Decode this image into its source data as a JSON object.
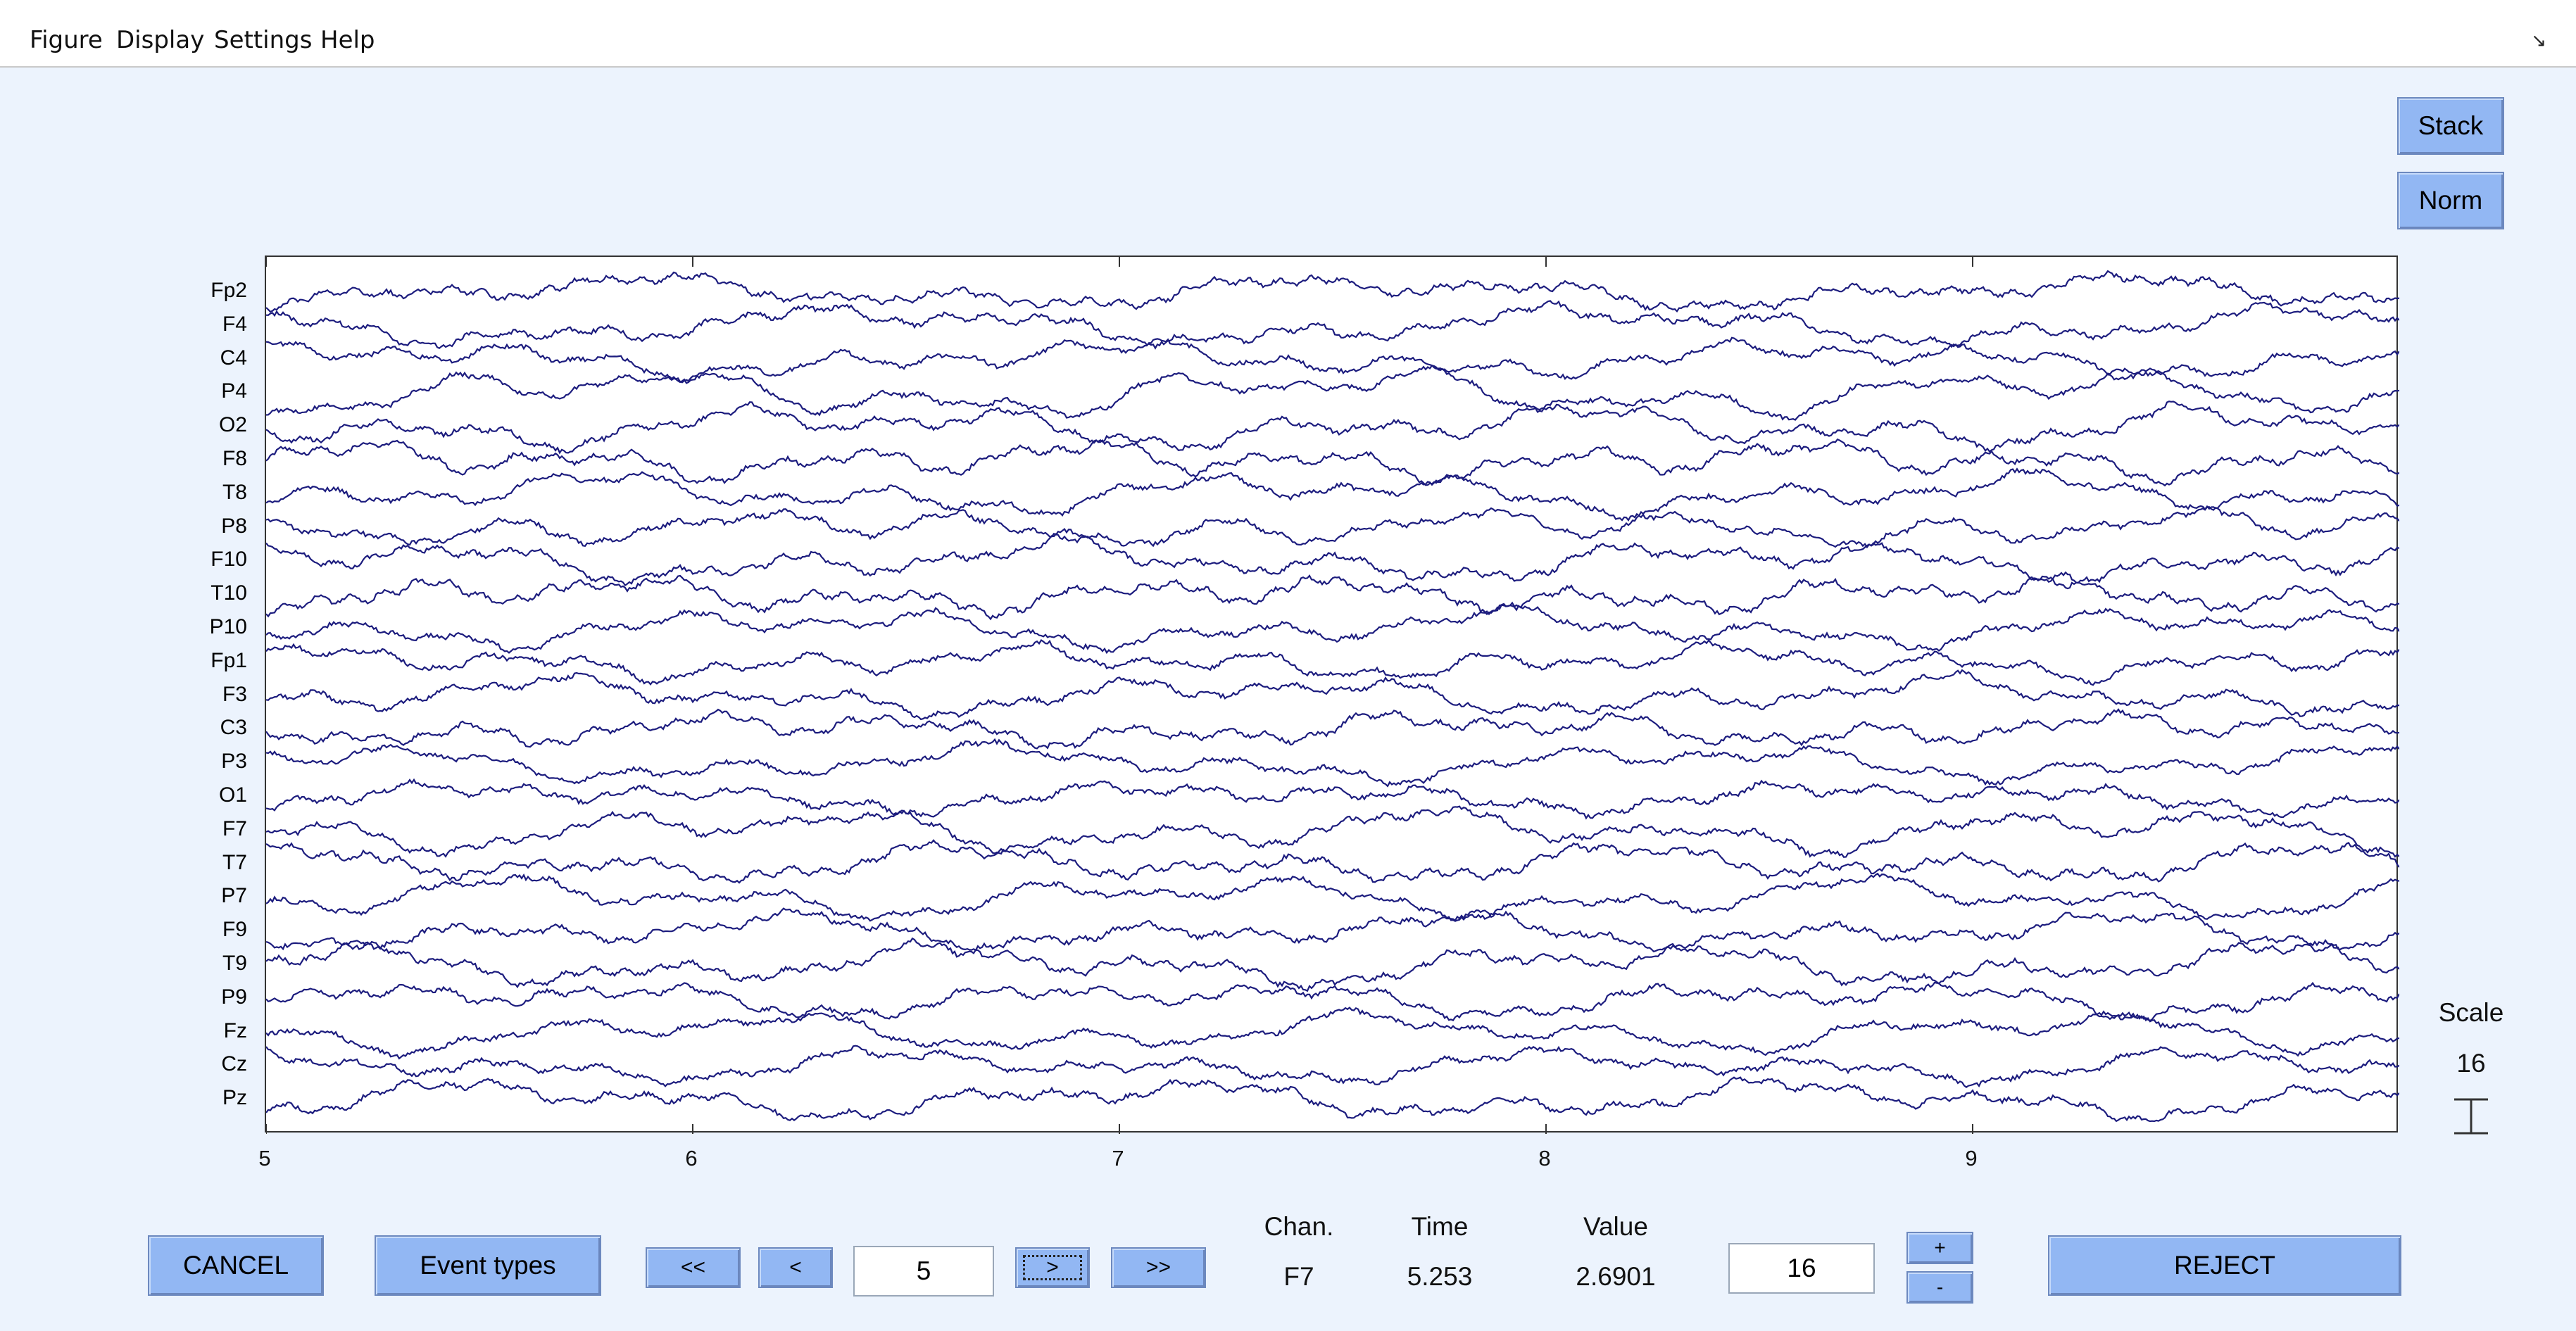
{
  "menu": {
    "items": [
      "Figure",
      "Display",
      "Settings",
      "Help"
    ]
  },
  "side_buttons": {
    "stack": "Stack",
    "norm": "Norm"
  },
  "scale": {
    "label": "Scale",
    "value": "16"
  },
  "channels": [
    "Fp2",
    "F4",
    "C4",
    "P4",
    "O2",
    "F8",
    "T8",
    "P8",
    "F10",
    "T10",
    "P10",
    "Fp1",
    "F3",
    "C3",
    "P3",
    "O1",
    "F7",
    "T7",
    "P7",
    "F9",
    "T9",
    "P9",
    "Fz",
    "Cz",
    "Pz"
  ],
  "x_axis": {
    "ticks": [
      "5",
      "6",
      "7",
      "8",
      "9"
    ],
    "range": [
      5,
      10
    ]
  },
  "bottom": {
    "cancel": "CANCEL",
    "event_types": "Event types",
    "nav_first": "<<",
    "nav_prev": "<",
    "position_value": "5",
    "nav_next": ">",
    "nav_last": ">>",
    "chan_label": "Chan.",
    "chan_value": "F7",
    "time_label": "Time",
    "time_value": "5.253",
    "value_label": "Value",
    "value_value": "2.6901",
    "scale_input": "16",
    "plus": "+",
    "minus": "-",
    "reject": "REJECT"
  },
  "colors": {
    "trace": "#1c1c7e",
    "background": "#ecf3fd",
    "button": "#92b7f3"
  }
}
